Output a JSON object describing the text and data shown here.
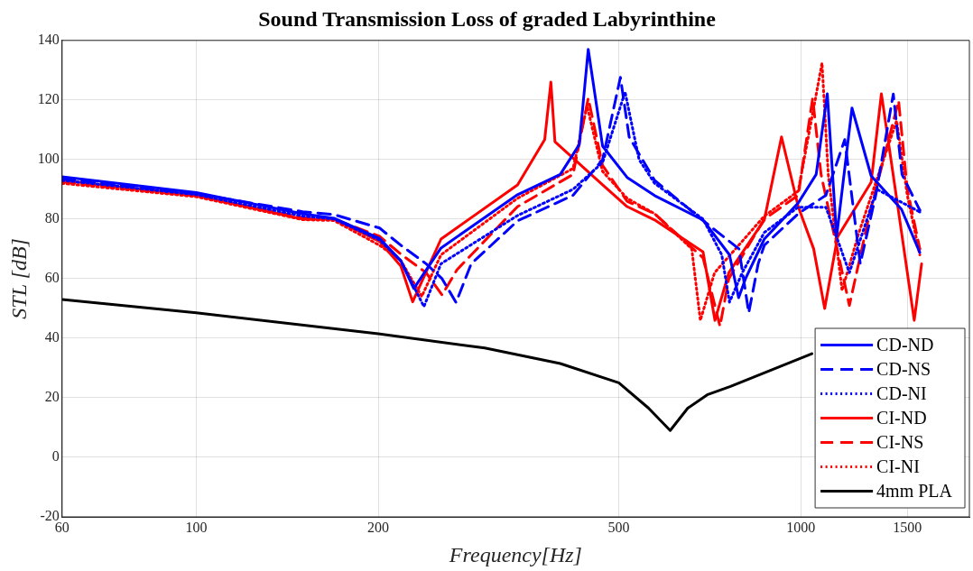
{
  "chart_data": {
    "type": "line",
    "title": "Sound Transmission Loss of graded Labyrinthine",
    "xlabel": "Frequency[Hz]",
    "ylabel": "STL [dB]",
    "log": "x",
    "xlim": [
      60,
      1900
    ],
    "xticks": [
      60,
      100,
      200,
      500,
      1000,
      1500
    ],
    "ylim": [
      -20,
      140
    ],
    "yticks": [
      -20,
      0,
      20,
      40,
      60,
      80,
      100,
      120,
      140
    ],
    "grid": true,
    "legend": "bottom right",
    "marker": "none",
    "series": [
      {
        "name": "CD-ND",
        "color": "#0000ff",
        "line_style": "solid",
        "x": [
          60,
          100,
          150,
          169,
          201,
          218,
          229,
          254,
          340,
          400,
          430,
          445,
          470,
          516,
          573,
          689,
          762,
          789,
          810,
          870,
          990,
          1060,
          1106,
          1146,
          1215,
          1307,
          1467,
          1573
        ],
        "values": [
          94.2,
          88.9,
          81.8,
          80.3,
          73.5,
          66,
          56.7,
          70.3,
          88.2,
          95,
          105,
          137,
          104.5,
          94,
          87.9,
          79.7,
          68,
          53.6,
          60,
          73.3,
          85.4,
          95,
          122.1,
          74.2,
          117.3,
          94.5,
          83.3,
          68.8
        ]
      },
      {
        "name": "CD-NS",
        "color": "#0000ff",
        "line_style": "dashed",
        "x": [
          60,
          100,
          150,
          169,
          201,
          218,
          240,
          255,
          269,
          285,
          340,
          420,
          470,
          503,
          520,
          573,
          689,
          790,
          820,
          850,
          870,
          990,
          1100,
          1182,
          1254,
          1330,
          1422,
          1470,
          1573
        ],
        "values": [
          93.5,
          88.5,
          82.5,
          81.5,
          77,
          71.2,
          65,
          60,
          52,
          65,
          79.4,
          88,
          100,
          127.6,
          107.6,
          93,
          79.5,
          70,
          48.5,
          65,
          71.2,
          81.8,
          88,
          106.7,
          65,
          88,
          122,
          95,
          83
        ]
      },
      {
        "name": "CD-NI",
        "color": "#0000ff",
        "line_style": "dotted",
        "x": [
          60,
          100,
          150,
          169,
          201,
          218,
          238,
          254,
          340,
          420,
          470,
          512,
          540,
          573,
          689,
          740,
          762,
          800,
          870,
          990,
          1100,
          1203,
          1336,
          1573
        ],
        "values": [
          93,
          88.2,
          81,
          80,
          73,
          66,
          50.6,
          65,
          81.2,
          90,
          99,
          122.7,
          100,
          92,
          80,
          68,
          52.1,
          62,
          75.5,
          84,
          84,
          62,
          90,
          82.4
        ]
      },
      {
        "name": "CI-ND",
        "color": "#ff0000",
        "line_style": "solid",
        "x": [
          60,
          100,
          150,
          169,
          201,
          218,
          228,
          254,
          340,
          377,
          386,
          392,
          470,
          516,
          573,
          689,
          721,
          760,
          870,
          929,
          990,
          1050,
          1095,
          1150,
          1307,
          1359,
          1440,
          1540,
          1584
        ],
        "values": [
          93,
          88,
          80,
          80,
          72.5,
          64.2,
          52.2,
          73.3,
          91.5,
          106.7,
          126,
          106,
          91.5,
          84.2,
          79.7,
          69,
          46,
          62,
          79.7,
          107.6,
          84.2,
          70,
          50,
          74,
          92.4,
          122.1,
          87,
          46,
          65
        ]
      },
      {
        "name": "CI-NS",
        "color": "#ff0000",
        "line_style": "dashed",
        "x": [
          60,
          100,
          150,
          169,
          201,
          218,
          240,
          255,
          270,
          340,
          420,
          445,
          470,
          516,
          573,
          689,
          735,
          760,
          870,
          990,
          1046,
          1080,
          1203,
          1300,
          1451,
          1500,
          1573
        ],
        "values": [
          92.5,
          87.8,
          80.5,
          80,
          74.2,
          68.2,
          62,
          54.5,
          63,
          84.2,
          95,
          120.6,
          98,
          86,
          81.8,
          67,
          44,
          60,
          80,
          88,
          120.6,
          95,
          51,
          82,
          119.7,
          90,
          70
        ]
      },
      {
        "name": "CI-NI",
        "color": "#ff0000",
        "line_style": "dotted",
        "x": [
          60,
          100,
          150,
          169,
          201,
          218,
          236,
          254,
          340,
          420,
          443,
          470,
          516,
          573,
          660,
          682,
          720,
          870,
          990,
          1084,
          1110,
          1170,
          1250,
          1440,
          1500,
          1573
        ],
        "values": [
          92,
          87.5,
          79.8,
          79.5,
          71.2,
          66,
          54,
          68,
          87,
          97,
          118,
          96,
          87,
          81.8,
          70,
          46,
          62,
          81,
          89.4,
          132.4,
          95,
          56,
          76,
          113,
          88,
          68
        ]
      },
      {
        "name": "4mm PLA",
        "color": "#000000",
        "line_style": "solid",
        "x": [
          60,
          100,
          200,
          300,
          400,
          500,
          560,
          608,
          650,
          700,
          765,
          1043
        ],
        "values": [
          53,
          48.5,
          41.5,
          36.7,
          31.5,
          25,
          16.5,
          9,
          16.5,
          21,
          23.8,
          34.8
        ]
      }
    ]
  }
}
